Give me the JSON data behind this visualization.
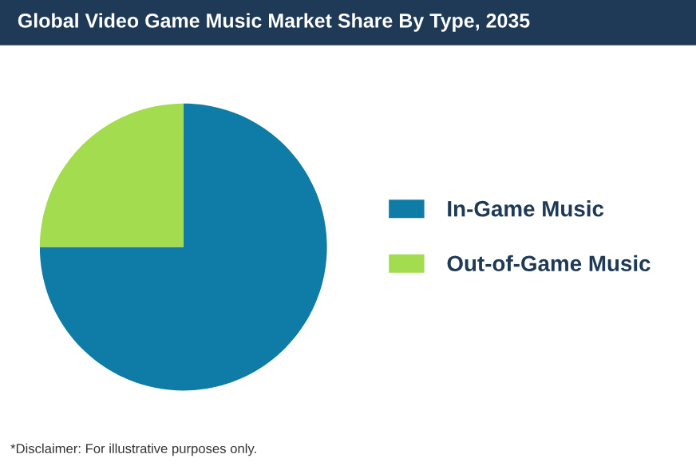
{
  "chart_data": {
    "type": "pie",
    "title": "Global Video Game Music Market Share By Type, 2035",
    "categories": [
      "In-Game Music",
      "Out-of-Game Music"
    ],
    "values": [
      75,
      25
    ],
    "colors": [
      "#0e7ca6",
      "#a3dd4f"
    ],
    "legend": "right",
    "annotations": [
      "*Disclaimer: For illustrative purposes only."
    ]
  }
}
